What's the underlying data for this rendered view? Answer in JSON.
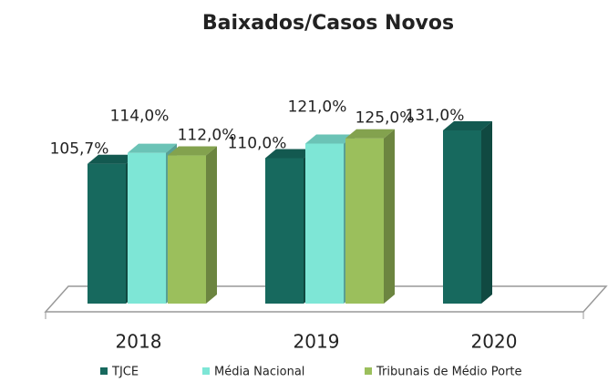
{
  "chart_data": {
    "type": "bar3d",
    "title": "Baixados/Casos Novos",
    "categories": [
      "2018",
      "2019",
      "2020"
    ],
    "series": [
      {
        "name": "TJCE",
        "color": "#17695e",
        "values": [
          105.7,
          110.0,
          131.0
        ],
        "value_labels": [
          "105,7%",
          "110,0%",
          "131,0%"
        ]
      },
      {
        "name": "Média Nacional",
        "color": "#7ee6d6",
        "values": [
          114.0,
          121.0,
          null
        ],
        "value_labels": [
          "114,0%",
          "121,0%",
          null
        ]
      },
      {
        "name": "Tribunais de Médio Porte",
        "color": "#9bbf5c",
        "values": [
          112.0,
          125.0,
          null
        ],
        "value_labels": [
          "112,0%",
          "125,0%",
          null
        ]
      }
    ]
  }
}
